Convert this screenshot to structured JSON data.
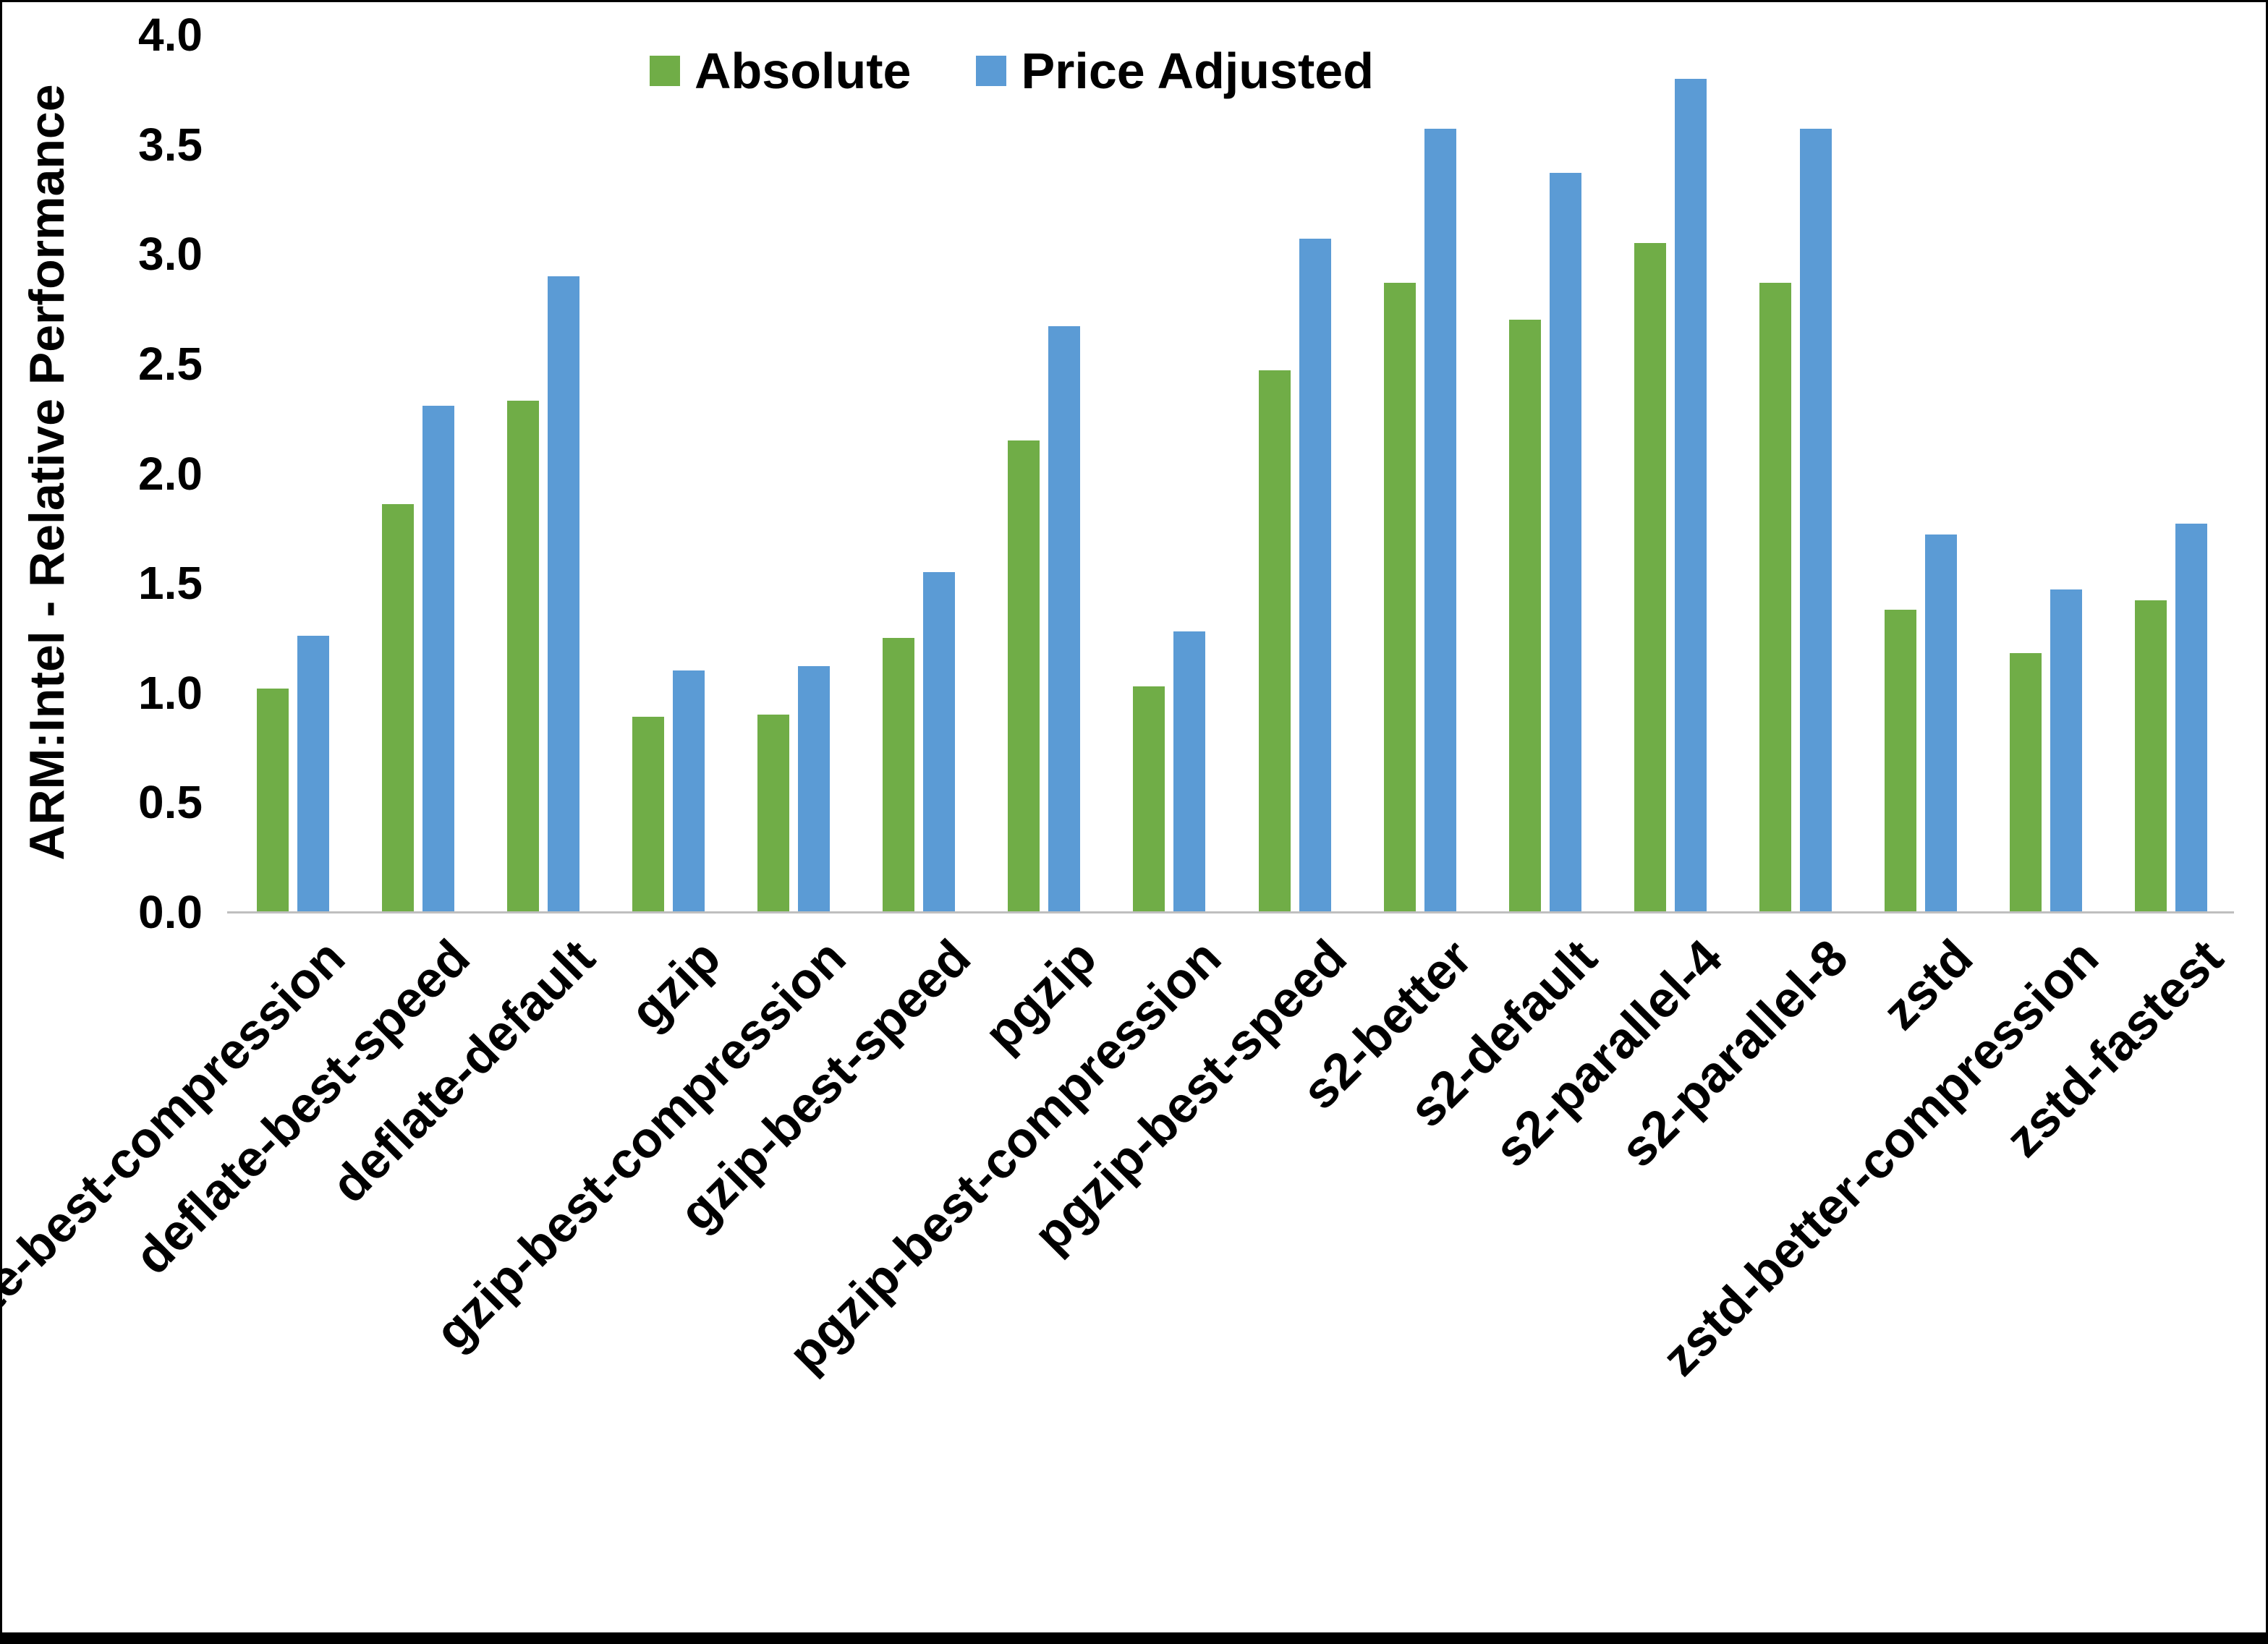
{
  "chart_data": {
    "type": "bar",
    "title": "",
    "xlabel": "",
    "ylabel": "ARM:Intel - Relative Performance",
    "ylim": [
      0,
      4.0
    ],
    "ytick_step": 0.5,
    "grid": false,
    "legend_position": "top",
    "colors": {
      "absolute": "#70AD47",
      "price_adjusted": "#5B9BD5",
      "axis_line": "#bfbfbf"
    },
    "categories": [
      "deflate-best-compression",
      "deflate-best-speed",
      "deflate-default",
      "gzip",
      "gzip-best-compression",
      "gzip-best-speed",
      "pgzip",
      "pgzip-best-compression",
      "pgzip-best-speed",
      "s2-better",
      "s2-default",
      "s2-parallel-4",
      "s2-parallel-8",
      "zstd",
      "zstd-better-compression",
      "zstd-fastest"
    ],
    "series": [
      {
        "name": "Absolute",
        "color": "#70AD47",
        "values": [
          1.02,
          1.86,
          2.33,
          0.89,
          0.9,
          1.25,
          2.15,
          1.03,
          2.47,
          2.87,
          2.7,
          3.05,
          2.87,
          1.38,
          1.18,
          1.42
        ]
      },
      {
        "name": "Price Adjusted",
        "color": "#5B9BD5",
        "values": [
          1.26,
          2.31,
          2.9,
          1.1,
          1.12,
          1.55,
          2.67,
          1.28,
          3.07,
          3.57,
          3.37,
          3.8,
          3.57,
          1.72,
          1.47,
          1.77
        ]
      }
    ]
  }
}
